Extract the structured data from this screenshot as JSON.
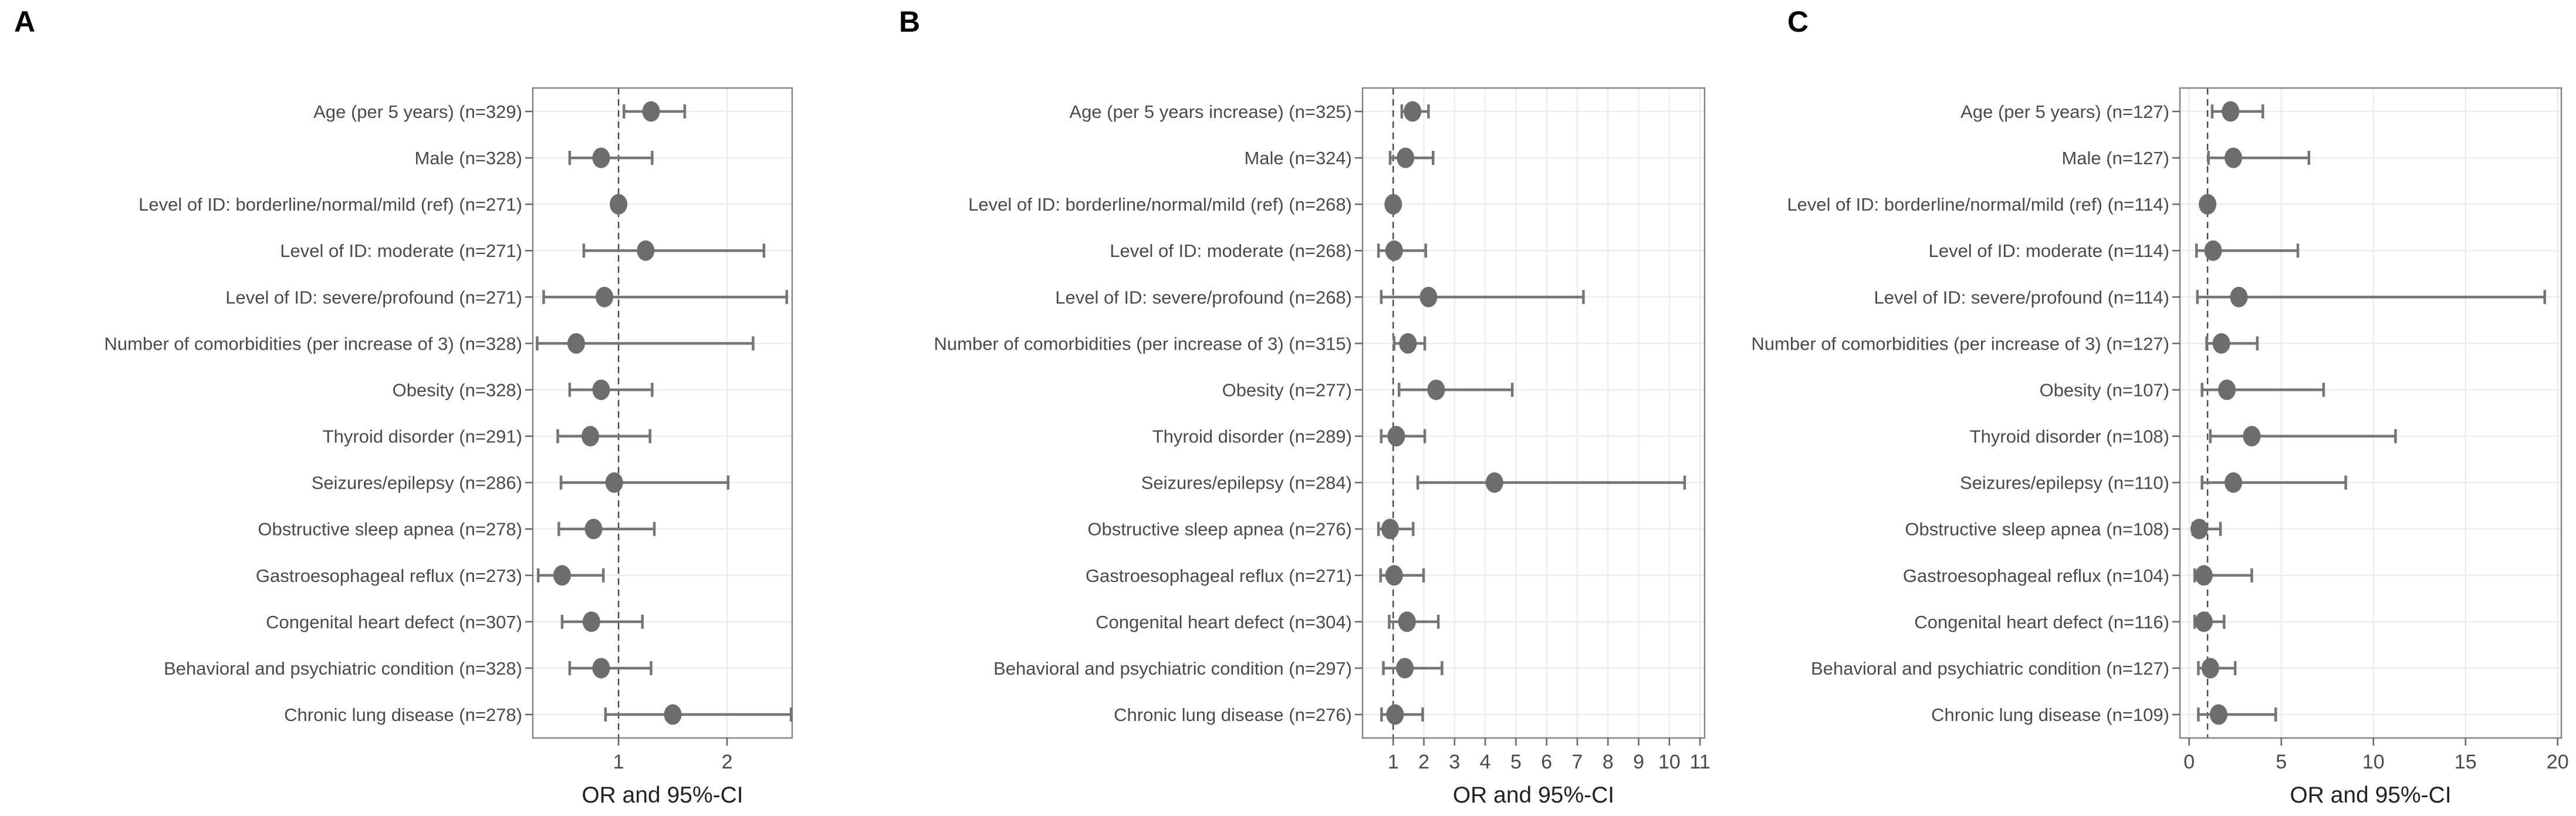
{
  "figure": {
    "background": "#ffffff",
    "xlabel": "OR and 95%-CI"
  },
  "colors": {
    "point": "#6d6d6d",
    "ci_line": "#757575",
    "reference_line": "#4d4d4d",
    "panel_border": "#858585",
    "gridline": "#e9e9e9",
    "row_gridline": "#ededed",
    "tick_mark": "#666666",
    "row_label": "#4a4a4a",
    "tick_label": "#4a4a4a",
    "axis_title": "#222222",
    "panel_letter": "#000000"
  },
  "chart_data": [
    {
      "type": "forest",
      "panel_label": "A",
      "xlabel": "OR and 95%-CI",
      "xlim": [
        0.21,
        2.6
      ],
      "ticks": [
        1,
        2
      ],
      "reference_line": 1,
      "grid": true,
      "rows": [
        {
          "label": "Age (per 5 years) (n=329)",
          "or": 1.3,
          "lo": 1.05,
          "hi": 1.61,
          "ref": false
        },
        {
          "label": "Male (n=328)",
          "or": 0.84,
          "lo": 0.55,
          "hi": 1.31,
          "ref": false
        },
        {
          "label": "Level of ID: borderline/normal/mild (ref) (n=271)",
          "or": 1.0,
          "lo": null,
          "hi": null,
          "ref": true
        },
        {
          "label": "Level of ID: moderate (n=271)",
          "or": 1.25,
          "lo": 0.68,
          "hi": 2.34,
          "ref": false
        },
        {
          "label": "Level of ID: severe/profound (n=271)",
          "or": 0.87,
          "lo": 0.31,
          "hi": 2.55,
          "ref": false
        },
        {
          "label": "Number of comorbidities (per increase of 3) (n=328)",
          "or": 0.61,
          "lo": 0.25,
          "hi": 2.24,
          "ref": false
        },
        {
          "label": "Obesity (n=328)",
          "or": 0.84,
          "lo": 0.55,
          "hi": 1.31,
          "ref": false
        },
        {
          "label": "Thyroid disorder (n=291)",
          "or": 0.74,
          "lo": 0.44,
          "hi": 1.29,
          "ref": false
        },
        {
          "label": "Seizures/epilepsy (n=286)",
          "or": 0.96,
          "lo": 0.47,
          "hi": 2.01,
          "ref": false
        },
        {
          "label": "Obstructive sleep apnea (n=278)",
          "or": 0.77,
          "lo": 0.45,
          "hi": 1.33,
          "ref": false
        },
        {
          "label": "Gastroesophageal reflux (n=273)",
          "or": 0.48,
          "lo": 0.26,
          "hi": 0.86,
          "ref": false
        },
        {
          "label": "Congenital heart defect (n=307)",
          "or": 0.75,
          "lo": 0.48,
          "hi": 1.22,
          "ref": false
        },
        {
          "label": "Behavioral and psychiatric condition (n=328)",
          "or": 0.84,
          "lo": 0.55,
          "hi": 1.3,
          "ref": false
        },
        {
          "label": "Chronic lung disease (n=278)",
          "or": 1.5,
          "lo": 0.88,
          "hi": 2.59,
          "ref": false
        }
      ]
    },
    {
      "type": "forest",
      "panel_label": "B",
      "xlabel": "OR and 95%-CI",
      "xlim": [
        0,
        11.15
      ],
      "ticks": [
        1,
        2,
        3,
        4,
        5,
        6,
        7,
        8,
        9,
        10,
        11
      ],
      "reference_line": 1,
      "grid": true,
      "rows": [
        {
          "label": "Age (per 5 years increase) (n=325)",
          "or": 1.63,
          "lo": 1.28,
          "hi": 2.15,
          "ref": false
        },
        {
          "label": "Male (n=324)",
          "or": 1.4,
          "lo": 0.9,
          "hi": 2.3,
          "ref": false
        },
        {
          "label": "Level of ID: borderline/normal/mild (ref) (n=268)",
          "or": 1.0,
          "lo": null,
          "hi": null,
          "ref": true
        },
        {
          "label": "Level of ID: moderate (n=268)",
          "or": 1.03,
          "lo": 0.52,
          "hi": 2.06,
          "ref": false
        },
        {
          "label": "Level of ID: severe/profound (n=268)",
          "or": 2.15,
          "lo": 0.61,
          "hi": 7.2,
          "ref": false
        },
        {
          "label": "Number of comorbidities (per increase of 3) (n=315)",
          "or": 1.48,
          "lo": 1.03,
          "hi": 2.03,
          "ref": false
        },
        {
          "label": "Obesity (n=277)",
          "or": 2.4,
          "lo": 1.19,
          "hi": 4.88,
          "ref": false
        },
        {
          "label": "Thyroid disorder (n=289)",
          "or": 1.1,
          "lo": 0.61,
          "hi": 2.03,
          "ref": false
        },
        {
          "label": "Seizures/epilepsy (n=284)",
          "or": 4.3,
          "lo": 1.8,
          "hi": 10.5,
          "ref": false
        },
        {
          "label": "Obstructive sleep apnea (n=276)",
          "or": 0.9,
          "lo": 0.52,
          "hi": 1.65,
          "ref": false
        },
        {
          "label": "Gastroesophageal reflux (n=271)",
          "or": 1.03,
          "lo": 0.59,
          "hi": 1.99,
          "ref": false
        },
        {
          "label": "Congenital heart defect (n=304)",
          "or": 1.45,
          "lo": 0.87,
          "hi": 2.47,
          "ref": false
        },
        {
          "label": "Behavioral and psychiatric condition (n=297)",
          "or": 1.38,
          "lo": 0.68,
          "hi": 2.59,
          "ref": false
        },
        {
          "label": "Chronic lung disease (n=276)",
          "or": 1.06,
          "lo": 0.62,
          "hi": 1.96,
          "ref": false
        }
      ]
    },
    {
      "type": "forest",
      "panel_label": "C",
      "xlabel": "OR and 95%-CI",
      "xlim": [
        -0.5,
        20.2
      ],
      "ticks": [
        0,
        5,
        10,
        15,
        20
      ],
      "reference_line": 1,
      "grid": true,
      "rows": [
        {
          "label": "Age (per 5 years) (n=127)",
          "or": 2.25,
          "lo": 1.25,
          "hi": 4.0,
          "ref": false
        },
        {
          "label": "Male (n=127)",
          "or": 2.4,
          "lo": 1.05,
          "hi": 6.5,
          "ref": false
        },
        {
          "label": "Level of ID: borderline/normal/mild (ref) (n=114)",
          "or": 1.0,
          "lo": null,
          "hi": null,
          "ref": true
        },
        {
          "label": "Level of ID: moderate (n=114)",
          "or": 1.3,
          "lo": 0.4,
          "hi": 5.9,
          "ref": false
        },
        {
          "label": "Level of ID: severe/profound (n=114)",
          "or": 2.7,
          "lo": 0.45,
          "hi": 19.3,
          "ref": false
        },
        {
          "label": "Number of comorbidities (per increase of 3) (n=127)",
          "or": 1.75,
          "lo": 0.95,
          "hi": 3.7,
          "ref": false
        },
        {
          "label": "Obesity (n=107)",
          "or": 2.05,
          "lo": 0.7,
          "hi": 7.3,
          "ref": false
        },
        {
          "label": "Thyroid disorder (n=108)",
          "or": 3.4,
          "lo": 1.15,
          "hi": 11.2,
          "ref": false
        },
        {
          "label": "Seizures/epilepsy (n=110)",
          "or": 2.4,
          "lo": 0.7,
          "hi": 8.5,
          "ref": false
        },
        {
          "label": "Obstructive sleep apnea (n=108)",
          "or": 0.55,
          "lo": 0.2,
          "hi": 1.7,
          "ref": false
        },
        {
          "label": "Gastroesophageal reflux (n=104)",
          "or": 0.8,
          "lo": 0.3,
          "hi": 3.4,
          "ref": false
        },
        {
          "label": "Congenital heart defect (n=116)",
          "or": 0.8,
          "lo": 0.3,
          "hi": 1.9,
          "ref": false
        },
        {
          "label": "Behavioral and psychiatric condition (n=127)",
          "or": 1.15,
          "lo": 0.5,
          "hi": 2.5,
          "ref": false
        },
        {
          "label": "Chronic lung disease (n=109)",
          "or": 1.6,
          "lo": 0.5,
          "hi": 4.7,
          "ref": false
        }
      ]
    }
  ]
}
